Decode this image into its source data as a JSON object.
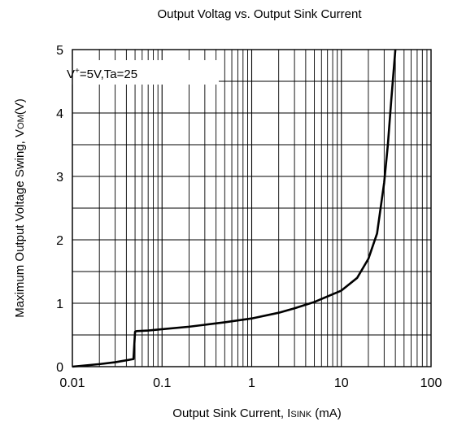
{
  "chart_data": {
    "type": "line",
    "title": "Output Voltag vs. Output Sink Current",
    "xlabel": "Output Sink Current, I",
    "xlabel_sub": "SINK",
    "xlabel_unit": " (mA)",
    "ylabel": "Maximum Output Voltage Swing, V",
    "ylabel_sub": "OM",
    "ylabel_unit": "(V)",
    "annotation": {
      "prefix": "V",
      "sup": "+",
      "rest": "=5V,Ta=25"
    },
    "x_scale": "log",
    "xlim": [
      0.01,
      100
    ],
    "ylim": [
      0,
      5
    ],
    "x_ticks": [
      0.01,
      0.1,
      1,
      10,
      100
    ],
    "x_tick_labels": [
      "0.01",
      "0.1",
      "1",
      "10",
      "100"
    ],
    "y_ticks": [
      0,
      1,
      2,
      3,
      4,
      5
    ],
    "y_tick_labels": [
      "0",
      "1",
      "2",
      "3",
      "4",
      "5"
    ],
    "grid": true,
    "line_color": "#000000",
    "series": [
      {
        "x": [
          0.01,
          0.02,
          0.03,
          0.04,
          0.048,
          0.05,
          0.052,
          0.07,
          0.1,
          0.2,
          0.3,
          0.5,
          1,
          2,
          3,
          5,
          10,
          15,
          20,
          25,
          30,
          33,
          36,
          40
        ],
        "y": [
          0.0,
          0.04,
          0.07,
          0.1,
          0.12,
          0.55,
          0.56,
          0.57,
          0.59,
          0.63,
          0.66,
          0.7,
          0.76,
          0.85,
          0.92,
          1.02,
          1.2,
          1.4,
          1.7,
          2.1,
          2.9,
          3.5,
          4.2,
          5.0
        ]
      }
    ]
  }
}
